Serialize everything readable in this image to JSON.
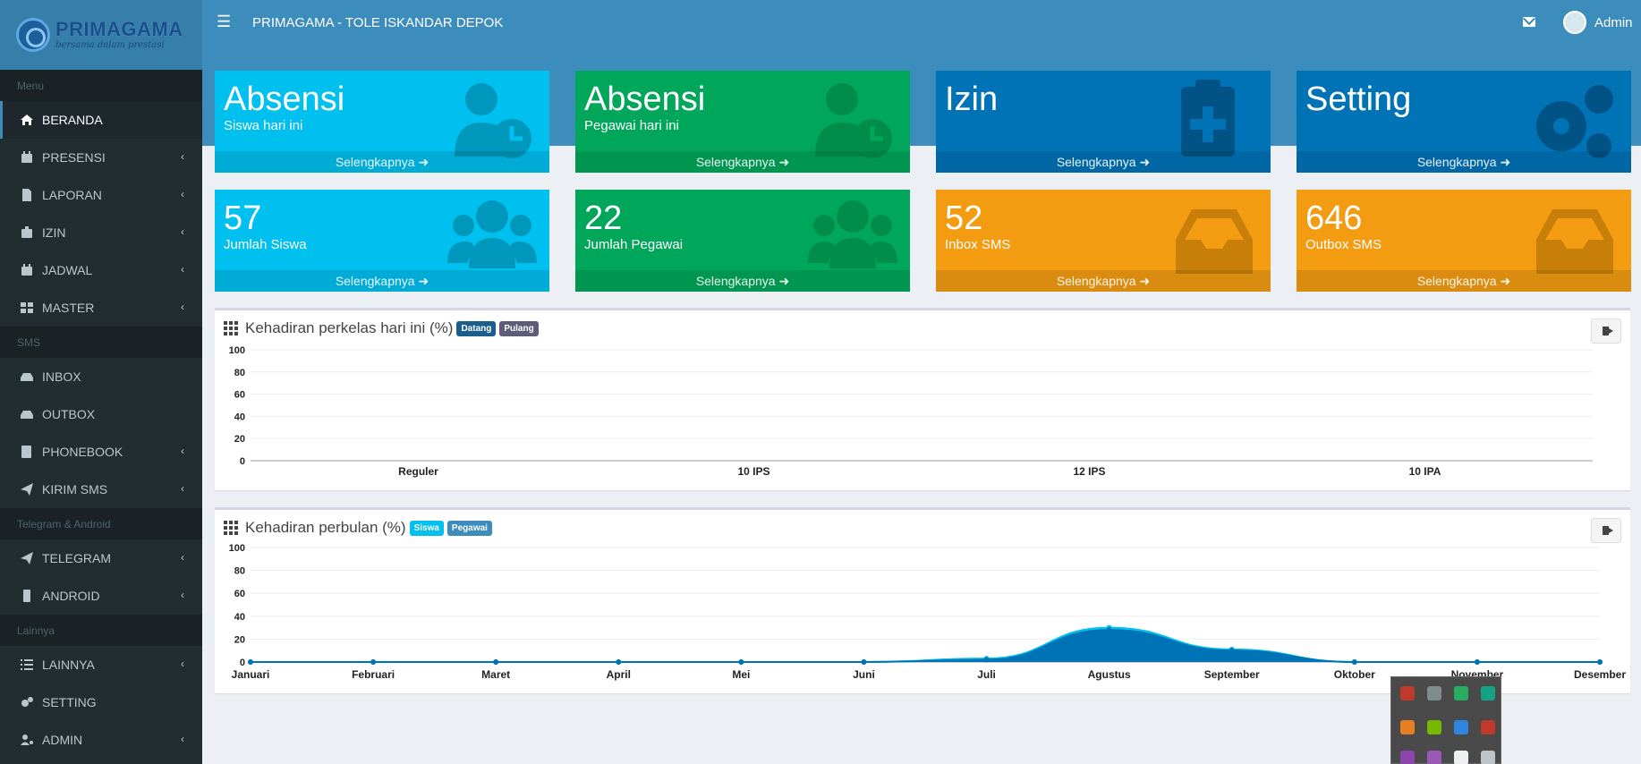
{
  "brand": {
    "name": "PRIMAGAMA",
    "tagline": "bersama dalam prestasi"
  },
  "topbar": {
    "title": "PRIMAGAMA - TOLE ISKANDAR DEPOK",
    "user": "Admin"
  },
  "sidebar": {
    "sections": [
      {
        "header": "Menu",
        "items": [
          {
            "label": "BERANDA",
            "icon": "home-icon",
            "active": true,
            "chevron": false
          },
          {
            "label": "PRESENSI",
            "icon": "calendar-check-icon",
            "chevron": true
          },
          {
            "label": "LAPORAN",
            "icon": "file-icon",
            "chevron": true
          },
          {
            "label": "IZIN",
            "icon": "briefcase-medical-icon",
            "chevron": true
          },
          {
            "label": "JADWAL",
            "icon": "calendar-icon",
            "chevron": true
          },
          {
            "label": "MASTER",
            "icon": "th-large-icon",
            "chevron": true
          }
        ]
      },
      {
        "header": "SMS",
        "items": [
          {
            "label": "INBOX",
            "icon": "inbox-icon",
            "chevron": false
          },
          {
            "label": "OUTBOX",
            "icon": "inbox-icon",
            "chevron": false
          },
          {
            "label": "PHONEBOOK",
            "icon": "address-book-icon",
            "chevron": true
          },
          {
            "label": "KIRIM SMS",
            "icon": "paper-plane-icon",
            "chevron": true
          }
        ]
      },
      {
        "header": "Telegram & Android",
        "items": [
          {
            "label": "TELEGRAM",
            "icon": "paper-plane-icon",
            "chevron": true
          },
          {
            "label": "ANDROID",
            "icon": "mobile-icon",
            "chevron": true
          }
        ]
      },
      {
        "header": "Lainnya",
        "items": [
          {
            "label": "LAINNYA",
            "icon": "list-icon",
            "chevron": true
          },
          {
            "label": "SETTING",
            "icon": "cogs-icon",
            "chevron": false
          },
          {
            "label": "ADMIN",
            "icon": "user-cog-icon",
            "chevron": true
          }
        ]
      }
    ]
  },
  "boxes_row1": [
    {
      "title": "Absensi",
      "subtitle": "Siswa hari ini",
      "footer": "Selengkapnya",
      "color": "aqua",
      "icon": "user-clock-icon"
    },
    {
      "title": "Absensi",
      "subtitle": "Pegawai hari ini",
      "footer": "Selengkapnya",
      "color": "green",
      "icon": "user-clock-icon"
    },
    {
      "title": "Izin",
      "subtitle": "",
      "footer": "Selengkapnya",
      "color": "blue",
      "icon": "clipboard-medical-icon"
    },
    {
      "title": "Setting",
      "subtitle": "",
      "footer": "Selengkapnya",
      "color": "blue",
      "icon": "cogs-icon"
    }
  ],
  "boxes_row2": [
    {
      "title": "57",
      "subtitle": "Jumlah Siswa",
      "footer": "Selengkapnya",
      "color": "aqua",
      "icon": "users-icon"
    },
    {
      "title": "22",
      "subtitle": "Jumlah Pegawai",
      "footer": "Selengkapnya",
      "color": "green",
      "icon": "users-icon"
    },
    {
      "title": "52",
      "subtitle": "Inbox SMS",
      "footer": "Selengkapnya",
      "color": "orange",
      "icon": "inbox-icon"
    },
    {
      "title": "646",
      "subtitle": "Outbox SMS",
      "footer": "Selengkapnya",
      "color": "orange",
      "icon": "inbox-icon"
    }
  ],
  "panel1": {
    "title": "Kehadiran perkelas hari ini (%)",
    "badges": [
      "Datang",
      "Pulang"
    ]
  },
  "panel2": {
    "title": "Kehadiran perbulan (%)",
    "badges": [
      "Siswa",
      "Pegawai"
    ]
  },
  "colors": {
    "aqua": "#00c0ef",
    "green": "#00a65a",
    "blue": "#0073b7",
    "orange": "#f39c12",
    "sidebar": "#222d32",
    "topbar": "#3c8dbc"
  },
  "chart_data": [
    {
      "type": "bar",
      "title": "Kehadiran perkelas hari ini (%)",
      "categories": [
        "Reguler",
        "10 IPS",
        "12 IPS",
        "10 IPA"
      ],
      "series": [
        {
          "name": "Datang",
          "values": [
            0,
            0,
            0,
            0
          ]
        },
        {
          "name": "Pulang",
          "values": [
            0,
            0,
            0,
            0
          ]
        }
      ],
      "yticks": [
        "100",
        "80",
        "60",
        "40",
        "20",
        "0"
      ],
      "ylim": [
        0,
        100
      ],
      "grid": true
    },
    {
      "type": "area",
      "title": "Kehadiran perbulan (%)",
      "categories": [
        "Januari",
        "Februari",
        "Maret",
        "April",
        "Mei",
        "Juni",
        "Juli",
        "Agustus",
        "September",
        "Oktober",
        "November",
        "Desember"
      ],
      "series": [
        {
          "name": "Siswa",
          "values": [
            0,
            0,
            0,
            0,
            0,
            0,
            3,
            30,
            11,
            0,
            0,
            0
          ]
        },
        {
          "name": "Pegawai",
          "values": [
            0,
            0,
            0,
            0,
            0,
            0,
            2,
            28,
            10,
            0,
            0,
            0
          ]
        }
      ],
      "yticks": [
        "100",
        "80",
        "60",
        "40",
        "20",
        "0"
      ],
      "ylim": [
        0,
        100
      ],
      "grid": true
    }
  ]
}
